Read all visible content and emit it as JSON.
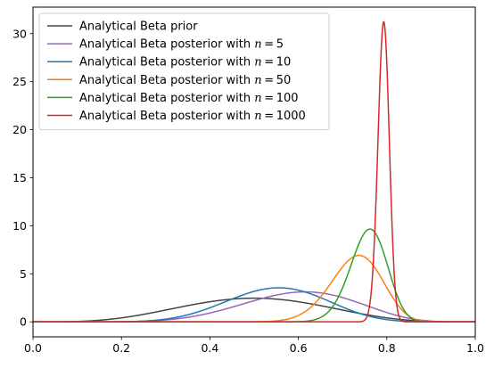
{
  "chart_data": {
    "type": "line",
    "title": "",
    "xlabel": "",
    "ylabel": "",
    "xlim": [
      0.0,
      1.0
    ],
    "ylim": [
      -1.56,
      32.76
    ],
    "x_ticks": [
      0.0,
      0.2,
      0.4,
      0.6,
      0.8,
      1.0
    ],
    "x_tick_labels": [
      "0.0",
      "0.2",
      "0.4",
      "0.6",
      "0.8",
      "1.0"
    ],
    "y_ticks": [
      0,
      5,
      10,
      15,
      20,
      25,
      30
    ],
    "y_tick_labels": [
      "0",
      "5",
      "10",
      "15",
      "20",
      "25",
      "30"
    ],
    "grid": false,
    "legend_position": "upper left",
    "series": [
      {
        "name": "Analytical Beta prior",
        "name_prefix": "Analytical Beta prior",
        "n_label": "",
        "color": "#444444",
        "alpha": 5,
        "beta": 5
      },
      {
        "name": "Analytical Beta posterior with n = 5",
        "name_prefix": "Analytical Beta posterior with ",
        "n_label": "n = 5",
        "color": "#9467bd",
        "alpha": 9,
        "beta": 6
      },
      {
        "name": "Analytical Beta posterior with n = 10",
        "name_prefix": "Analytical Beta posterior with ",
        "n_label": "n = 10",
        "color": "#1f77b4",
        "alpha": 11,
        "beta": 9
      },
      {
        "name": "Analytical Beta posterior with n = 50",
        "name_prefix": "Analytical Beta posterior with ",
        "n_label": "n = 50",
        "color": "#ff7f0e",
        "alpha": 43,
        "beta": 16
      },
      {
        "name": "Analytical Beta posterior with n = 100",
        "name_prefix": "Analytical Beta posterior with ",
        "n_label": "n = 100",
        "color": "#2ca02c",
        "alpha": 81,
        "beta": 26
      },
      {
        "name": "Analytical Beta posterior with n = 1000",
        "name_prefix": "Analytical Beta posterior with ",
        "n_label": "n = 1000",
        "color": "#d62728",
        "alpha": 798,
        "beta": 209
      }
    ]
  }
}
